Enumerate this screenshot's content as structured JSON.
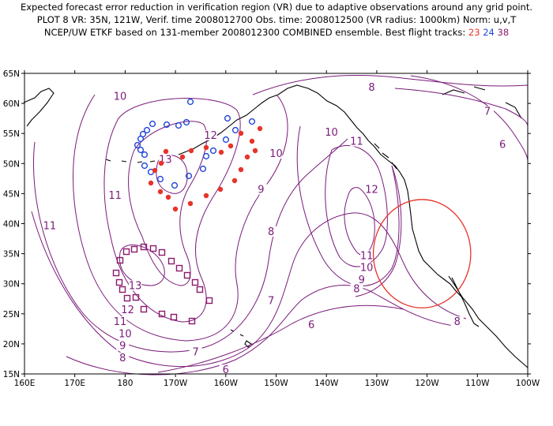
{
  "header": {
    "line1": "Expected forecast error reduction in verification region (VR) due to adaptive observations around any grid point.",
    "line2": "PLOT 8 VR: 35N, 121W, Verif. time 2008012700 Obs. time: 2008012500 (VR radius: 1000km) Norm: u,v,T",
    "line3_prefix": "NCEP/UW ETKF based on 131-member 2008012300 COMBINED ensemble.  Best flight tracks:",
    "track_23": "23",
    "track_24": "24",
    "track_38": "38"
  },
  "colors": {
    "contour": "#7a1a7a",
    "coast": "#000000",
    "track_23": "#e8332a",
    "track_24": "#2046d8",
    "track_38": "#8a1a6b",
    "vr_circle": "#e8332a"
  },
  "axes": {
    "lon_labels": [
      "160E",
      "170E",
      "180",
      "170W",
      "160W",
      "150W",
      "140W",
      "130W",
      "120W",
      "110W",
      "100W"
    ],
    "lat_labels": [
      "65N",
      "60N",
      "55N",
      "50N",
      "45N",
      "40N",
      "35N",
      "30N",
      "25N",
      "20N",
      "15N"
    ]
  },
  "contour_labels": [
    {
      "text": "10",
      "lon": 179,
      "lat": 61
    },
    {
      "text": "12",
      "lon": -163,
      "lat": 54.5
    },
    {
      "text": "13",
      "lon": -172,
      "lat": 50.5
    },
    {
      "text": "11",
      "lon": 178,
      "lat": 44.5
    },
    {
      "text": "11",
      "lon": 165,
      "lat": 39.5
    },
    {
      "text": "10",
      "lon": -139,
      "lat": 55
    },
    {
      "text": "11",
      "lon": -134,
      "lat": 53.5
    },
    {
      "text": "10",
      "lon": -150,
      "lat": 51.5
    },
    {
      "text": "9",
      "lon": -153,
      "lat": 45.5
    },
    {
      "text": "8",
      "lon": -151,
      "lat": 38.5
    },
    {
      "text": "12",
      "lon": -131,
      "lat": 45.5
    },
    {
      "text": "11",
      "lon": -132,
      "lat": 34.5
    },
    {
      "text": "10",
      "lon": -132,
      "lat": 32.5
    },
    {
      "text": "9",
      "lon": -133,
      "lat": 30.5
    },
    {
      "text": "8",
      "lon": -134,
      "lat": 29
    },
    {
      "text": "8",
      "lon": -131,
      "lat": 62.5
    },
    {
      "text": "7",
      "lon": -108,
      "lat": 58.5
    },
    {
      "text": "6",
      "lon": -105,
      "lat": 53
    },
    {
      "text": "7",
      "lon": -151,
      "lat": 27
    },
    {
      "text": "6",
      "lon": -143,
      "lat": 23
    },
    {
      "text": "7",
      "lon": -166,
      "lat": 18.5
    },
    {
      "text": "6",
      "lon": -160,
      "lat": 15.5
    },
    {
      "text": "8",
      "lon": -114,
      "lat": 23.5
    },
    {
      "text": "13",
      "lon": -178,
      "lat": 29.5
    },
    {
      "text": "12",
      "lon": -179.5,
      "lat": 25.5
    },
    {
      "text": "11",
      "lon": 179,
      "lat": 23.5
    },
    {
      "text": "10",
      "lon": 180,
      "lat": 21.5
    },
    {
      "text": "9",
      "lon": 179.5,
      "lat": 19.5
    },
    {
      "text": "8",
      "lon": 179.5,
      "lat": 17.5
    }
  ],
  "verification_region": {
    "lat": 35,
    "lon": -121,
    "radius_km": 1000
  }
}
